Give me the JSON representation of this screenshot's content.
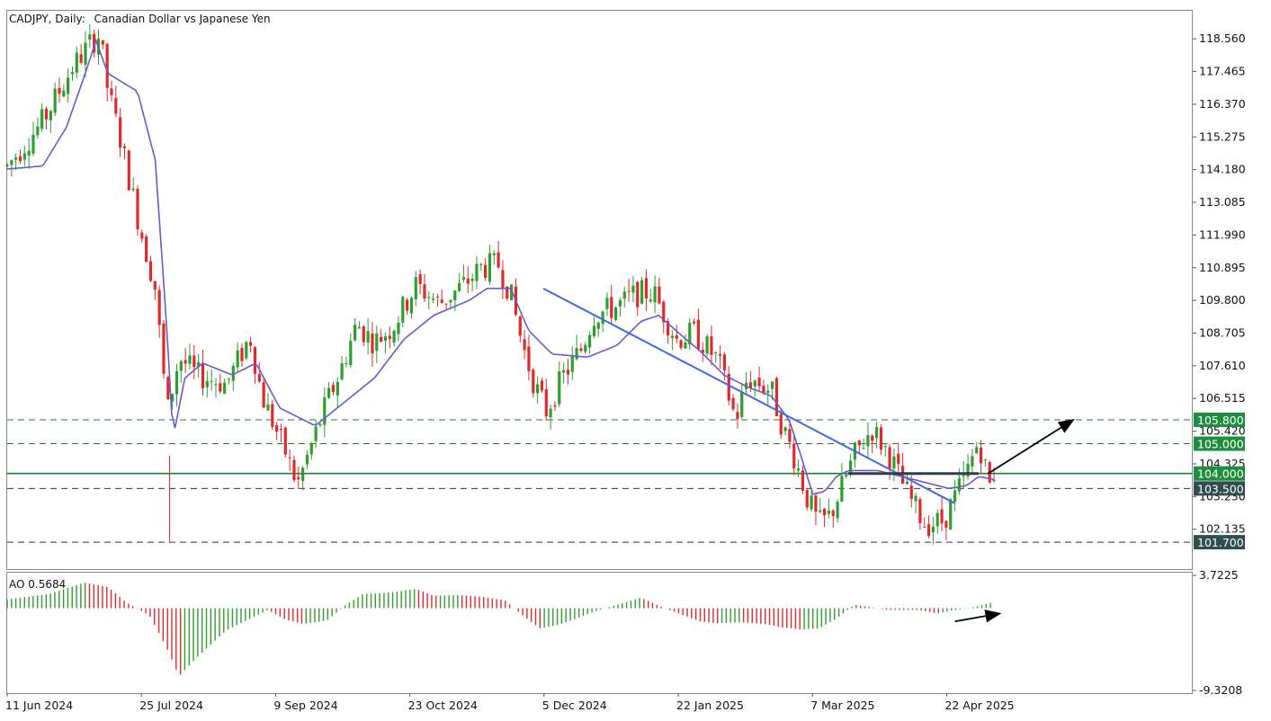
{
  "header": {
    "symbol": "CADJPY, Daily:",
    "description": "Canadian Dollar vs Japanese Yen"
  },
  "indicator": {
    "label": "AO 0.5684",
    "scale_top": "3.7225",
    "scale_bottom": "-9.3208"
  },
  "colors": {
    "bull": "#2e9e2e",
    "bear": "#e0292b",
    "ma": "#6a5acd",
    "trendline": "#4169e1",
    "level_line": "#1e7e34",
    "badge_green": "#1e8e3e",
    "badge_dark": "#2f4f4f",
    "arrow": "#000000"
  },
  "chart_data": [
    {
      "type": "candlestick",
      "title": "CADJPY, Daily: Canadian Dollar vs Japanese Yen",
      "ylim": [
        100.8,
        119.5
      ],
      "y_ticks": [
        "118.560",
        "117.465",
        "116.370",
        "115.275",
        "114.180",
        "113.085",
        "111.990",
        "110.895",
        "109.800",
        "108.705",
        "107.610",
        "106.515",
        "105.420",
        "104.325",
        "103.230",
        "102.135"
      ],
      "x_ticks": [
        "11 Jun 2024",
        "25 Jul 2024",
        "9 Sep 2024",
        "23 Oct 2024",
        "5 Dec 2024",
        "22 Jan 2025",
        "7 Mar 2025",
        "22 Apr 2025"
      ],
      "horizontal_levels": [
        {
          "value": 105.8,
          "label": "105.800",
          "style": "dashed",
          "badge": "green"
        },
        {
          "value": 105.0,
          "label": "105.000",
          "style": "dashed",
          "badge": "green"
        },
        {
          "value": 104.0,
          "label": "104.000",
          "style": "solid",
          "badge": "green"
        },
        {
          "value": 103.5,
          "label": "103.500",
          "style": "dashed",
          "badge": "dark"
        },
        {
          "value": 101.7,
          "label": "101.700",
          "style": "dashed",
          "badge": "dark"
        }
      ],
      "trendline": {
        "from": [
          0.4525,
          110.2
        ],
        "to": [
          0.8,
          103.0
        ]
      },
      "support_segment": {
        "from": [
          0.71,
          104.0
        ],
        "to": [
          0.82,
          104.0
        ]
      },
      "arrow": {
        "from": [
          0.828,
          104.0
        ],
        "to": [
          0.9,
          105.8
        ]
      },
      "price_path": [
        [
          0.0,
          114.3
        ],
        [
          0.03,
          115.8
        ],
        [
          0.055,
          117.6
        ],
        [
          0.07,
          118.4
        ],
        [
          0.078,
          118.7
        ],
        [
          0.085,
          116.8
        ],
        [
          0.095,
          115.3
        ],
        [
          0.11,
          112.6
        ],
        [
          0.125,
          110.2
        ],
        [
          0.135,
          106.0
        ],
        [
          0.145,
          107.9
        ],
        [
          0.16,
          107.3
        ],
        [
          0.185,
          107.0
        ],
        [
          0.205,
          108.6
        ],
        [
          0.215,
          106.6
        ],
        [
          0.235,
          104.7
        ],
        [
          0.245,
          103.6
        ],
        [
          0.26,
          105.3
        ],
        [
          0.27,
          106.4
        ],
        [
          0.28,
          107.3
        ],
        [
          0.295,
          109.0
        ],
        [
          0.31,
          108.4
        ],
        [
          0.325,
          108.9
        ],
        [
          0.345,
          110.3
        ],
        [
          0.365,
          109.7
        ],
        [
          0.385,
          110.3
        ],
        [
          0.4,
          110.9
        ],
        [
          0.415,
          111.0
        ],
        [
          0.425,
          110.0
        ],
        [
          0.435,
          108.3
        ],
        [
          0.445,
          107.0
        ],
        [
          0.455,
          106.1
        ],
        [
          0.47,
          107.3
        ],
        [
          0.485,
          108.2
        ],
        [
          0.495,
          109.3
        ],
        [
          0.515,
          109.6
        ],
        [
          0.53,
          110.0
        ],
        [
          0.545,
          110.1
        ],
        [
          0.555,
          109.3
        ],
        [
          0.565,
          108.5
        ],
        [
          0.58,
          108.7
        ],
        [
          0.6,
          107.8
        ],
        [
          0.615,
          105.8
        ],
        [
          0.625,
          107.2
        ],
        [
          0.645,
          106.8
        ],
        [
          0.655,
          105.5
        ],
        [
          0.665,
          104.5
        ],
        [
          0.675,
          103.2
        ],
        [
          0.685,
          102.3
        ],
        [
          0.695,
          102.6
        ],
        [
          0.705,
          103.6
        ],
        [
          0.715,
          104.6
        ],
        [
          0.73,
          105.5
        ],
        [
          0.745,
          104.6
        ],
        [
          0.76,
          103.3
        ],
        [
          0.775,
          102.3
        ],
        [
          0.79,
          102.4
        ],
        [
          0.8,
          103.2
        ],
        [
          0.81,
          104.0
        ],
        [
          0.82,
          105.1
        ],
        [
          0.83,
          103.5
        ],
        [
          0.833,
          104.0
        ]
      ],
      "ma_path": [
        [
          0.0,
          114.2
        ],
        [
          0.03,
          114.3
        ],
        [
          0.05,
          115.6
        ],
        [
          0.065,
          117.3
        ],
        [
          0.075,
          118.5
        ],
        [
          0.085,
          117.4
        ],
        [
          0.11,
          116.8
        ],
        [
          0.125,
          114.5
        ],
        [
          0.135,
          108.7
        ],
        [
          0.14,
          105.2
        ],
        [
          0.15,
          107.2
        ],
        [
          0.165,
          107.7
        ],
        [
          0.19,
          107.3
        ],
        [
          0.21,
          107.7
        ],
        [
          0.23,
          106.2
        ],
        [
          0.26,
          105.6
        ],
        [
          0.285,
          106.4
        ],
        [
          0.31,
          107.2
        ],
        [
          0.335,
          108.5
        ],
        [
          0.36,
          109.3
        ],
        [
          0.39,
          109.8
        ],
        [
          0.405,
          110.2
        ],
        [
          0.425,
          110.2
        ],
        [
          0.44,
          108.8
        ],
        [
          0.46,
          108.0
        ],
        [
          0.49,
          107.9
        ],
        [
          0.515,
          108.3
        ],
        [
          0.535,
          109.1
        ],
        [
          0.55,
          109.3
        ],
        [
          0.57,
          108.6
        ],
        [
          0.585,
          108.1
        ],
        [
          0.605,
          107.3
        ],
        [
          0.625,
          106.9
        ],
        [
          0.645,
          106.6
        ],
        [
          0.66,
          105.8
        ],
        [
          0.67,
          104.6
        ],
        [
          0.68,
          103.3
        ],
        [
          0.69,
          103.4
        ],
        [
          0.7,
          103.9
        ],
        [
          0.71,
          104.1
        ],
        [
          0.735,
          104.1
        ],
        [
          0.755,
          103.9
        ],
        [
          0.775,
          103.7
        ],
        [
          0.795,
          103.5
        ],
        [
          0.81,
          103.6
        ],
        [
          0.82,
          103.9
        ],
        [
          0.833,
          103.8
        ]
      ]
    },
    {
      "type": "histogram",
      "title": "AO 0.5684",
      "ylim": [
        -9.3208,
        3.7225
      ],
      "y_ticks": [
        "3.7225",
        "-9.3208"
      ],
      "current_value": 0.5684,
      "path": [
        [
          0.0,
          1.0
        ],
        [
          0.035,
          1.6
        ],
        [
          0.065,
          2.9
        ],
        [
          0.085,
          2.4
        ],
        [
          0.1,
          0.7
        ],
        [
          0.12,
          -0.8
        ],
        [
          0.135,
          -4.6
        ],
        [
          0.145,
          -7.7
        ],
        [
          0.16,
          -5.6
        ],
        [
          0.185,
          -2.5
        ],
        [
          0.205,
          -1.2
        ],
        [
          0.22,
          -0.2
        ],
        [
          0.235,
          -1.3
        ],
        [
          0.25,
          -1.8
        ],
        [
          0.27,
          -1.4
        ],
        [
          0.285,
          0.3
        ],
        [
          0.3,
          1.6
        ],
        [
          0.325,
          1.8
        ],
        [
          0.345,
          2.2
        ],
        [
          0.36,
          1.4
        ],
        [
          0.38,
          1.5
        ],
        [
          0.4,
          1.3
        ],
        [
          0.42,
          0.9
        ],
        [
          0.435,
          -0.8
        ],
        [
          0.45,
          -2.3
        ],
        [
          0.465,
          -1.9
        ],
        [
          0.48,
          -1.2
        ],
        [
          0.495,
          -0.4
        ],
        [
          0.515,
          0.4
        ],
        [
          0.535,
          1.2
        ],
        [
          0.55,
          0.3
        ],
        [
          0.565,
          -0.5
        ],
        [
          0.585,
          -1.5
        ],
        [
          0.6,
          -1.7
        ],
        [
          0.62,
          -1.6
        ],
        [
          0.64,
          -1.8
        ],
        [
          0.655,
          -2.2
        ],
        [
          0.67,
          -2.4
        ],
        [
          0.685,
          -2.3
        ],
        [
          0.7,
          -1.2
        ],
        [
          0.715,
          0.4
        ],
        [
          0.73,
          0.1
        ],
        [
          0.745,
          -0.2
        ],
        [
          0.77,
          -0.2
        ],
        [
          0.785,
          -0.6
        ],
        [
          0.8,
          -0.2
        ],
        [
          0.815,
          0.1
        ],
        [
          0.83,
          0.6
        ]
      ],
      "arrow": {
        "from": [
          0.8,
          -1.5
        ],
        "to": [
          0.838,
          -0.6
        ]
      }
    }
  ]
}
